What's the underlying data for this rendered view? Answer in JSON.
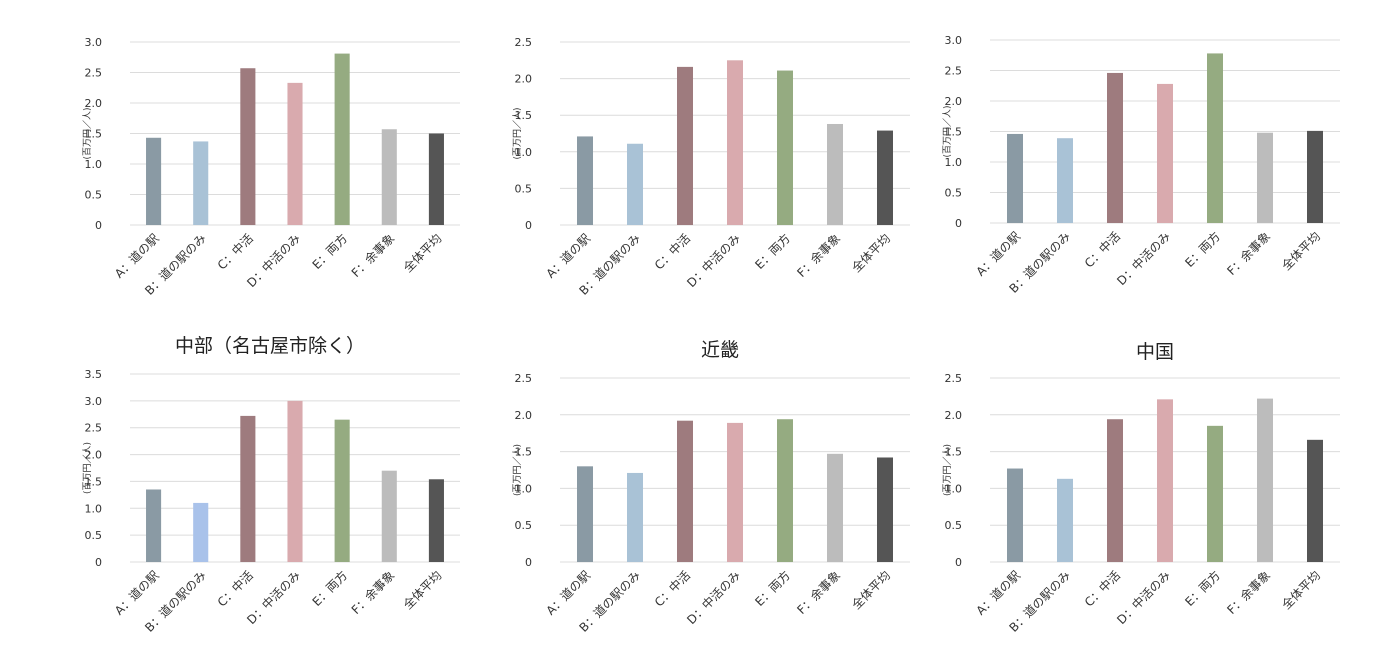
{
  "chart_data": [
    {
      "type": "bar",
      "title": "",
      "ylabel": "(百万円／人)",
      "categories": [
        "A：道の駅",
        "B：道の駅のみ",
        "C：中活",
        "D：中活のみ",
        "E：両方",
        "F：余事象",
        "全体平均"
      ],
      "values": [
        1.43,
        1.37,
        2.57,
        2.33,
        2.81,
        1.57,
        1.5
      ],
      "ylim": [
        0,
        3.0
      ],
      "yticks": [
        "0",
        "0.5",
        "1.0",
        "1.5",
        "2.0",
        "2.5",
        "3.0"
      ],
      "grid": true
    },
    {
      "type": "bar",
      "title": "",
      "ylabel": "(百万円／人)",
      "categories": [
        "A：道の駅",
        "B：道の駅のみ",
        "C：中活",
        "D：中活のみ",
        "E：両方",
        "F：余事象",
        "全体平均"
      ],
      "values": [
        1.21,
        1.11,
        2.16,
        2.25,
        2.11,
        1.38,
        1.29
      ],
      "ylim": [
        0,
        2.5
      ],
      "yticks": [
        "0",
        "0.5",
        "1.0",
        "1.5",
        "2.0",
        "2.5"
      ],
      "grid": true
    },
    {
      "type": "bar",
      "title": "",
      "ylabel": "(百万円／人)",
      "categories": [
        "A：道の駅",
        "B：道の駅のみ",
        "C：中活",
        "D：中活のみ",
        "E：両方",
        "F：余事象",
        "全体平均"
      ],
      "values": [
        1.46,
        1.39,
        2.46,
        2.28,
        2.78,
        1.48,
        1.51
      ],
      "ylim": [
        0,
        3.0
      ],
      "yticks": [
        "0",
        "0.5",
        "1.0",
        "1.5",
        "2.0",
        "2.5",
        "3.0"
      ],
      "grid": true
    },
    {
      "type": "bar",
      "title": "中部（名古屋市除く）",
      "ylabel": "(百万円／人)",
      "categories": [
        "A：道の駅",
        "B：道の駅のみ",
        "C：中活",
        "D：中活のみ",
        "E：両方",
        "F：余事象",
        "全体平均"
      ],
      "values": [
        1.35,
        1.1,
        2.72,
        3.0,
        2.65,
        1.7,
        1.54
      ],
      "ylim": [
        0,
        3.5
      ],
      "yticks": [
        "0",
        "0.5",
        "1.0",
        "1.5",
        "2.0",
        "2.5",
        "3.0",
        "3.5"
      ],
      "grid": true
    },
    {
      "type": "bar",
      "title": "近畿",
      "ylabel": "(百万円／人)",
      "categories": [
        "A：道の駅",
        "B：道の駅のみ",
        "C：中活",
        "D：中活のみ",
        "E：両方",
        "F：余事象",
        "全体平均"
      ],
      "values": [
        1.3,
        1.21,
        1.92,
        1.89,
        1.94,
        1.47,
        1.42
      ],
      "ylim": [
        0,
        2.5
      ],
      "yticks": [
        "0",
        "0.5",
        "1.0",
        "1.5",
        "2.0",
        "2.5"
      ],
      "grid": true
    },
    {
      "type": "bar",
      "title": "中国",
      "ylabel": "(百万円／人)",
      "categories": [
        "A：道の駅",
        "B：道の駅のみ",
        "C：中活",
        "D：中活のみ",
        "E：両方",
        "F：余事象",
        "全体平均"
      ],
      "values": [
        1.27,
        1.13,
        1.94,
        2.21,
        1.85,
        2.22,
        1.66
      ],
      "ylim": [
        0,
        2.5
      ],
      "yticks": [
        "0",
        "0.5",
        "1.0",
        "1.5",
        "2.0",
        "2.5"
      ],
      "grid": true
    }
  ],
  "colors": {
    "bar_colors": [
      "#8a9aa4",
      "#a9c2d6",
      "#9e7b7e",
      "#d9aaae",
      "#95ab81",
      "#bcbcbc",
      "#555555"
    ],
    "bar_colors_panel4": [
      "#8a9aa4",
      "#a9c2ea",
      "#9e7b7e",
      "#d9aaae",
      "#95ab81",
      "#bcbcbc",
      "#555555"
    ],
    "grid": "#dcdcdc",
    "text": "#333333"
  }
}
